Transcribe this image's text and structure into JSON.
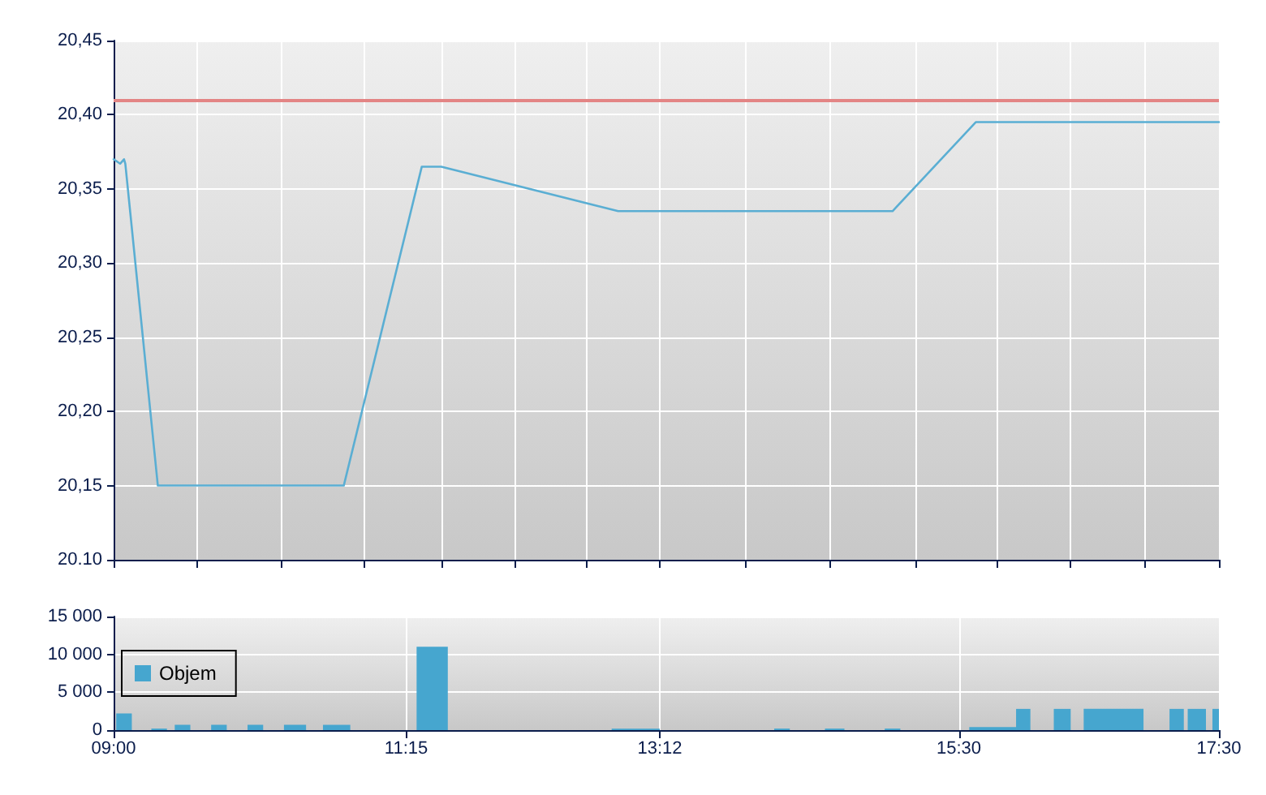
{
  "chart_data": [
    {
      "type": "line",
      "x": [
        9,
        9.05,
        9.08,
        9.09,
        9.34,
        10.77,
        11.37,
        11.52,
        12.88,
        14.99,
        15.63,
        17.5
      ],
      "values": [
        20.37,
        20.367,
        20.37,
        20.367,
        20.15,
        20.15,
        20.365,
        20.365,
        20.335,
        20.335,
        20.395,
        20.395
      ],
      "color": "#5aaed3",
      "xlim": [
        9,
        17.5
      ],
      "xticks": [
        {
          "value": 9,
          "label": null
        },
        {
          "value": 9.64,
          "label": null
        },
        {
          "value": 10.29,
          "label": null
        },
        {
          "value": 10.93,
          "label": null
        },
        {
          "value": 11.53,
          "label": null
        },
        {
          "value": 12.09,
          "label": null
        },
        {
          "value": 12.64,
          "label": null
        },
        {
          "value": 13.2,
          "label": null
        },
        {
          "value": 13.86,
          "label": null
        },
        {
          "value": 14.51,
          "label": null
        },
        {
          "value": 15.17,
          "label": null
        },
        {
          "value": 15.79,
          "label": null
        },
        {
          "value": 16.36,
          "label": null
        },
        {
          "value": 16.93,
          "label": null
        },
        {
          "value": 17.5,
          "label": null
        }
      ],
      "ylim": [
        20.1,
        20.45
      ],
      "yticks": [
        {
          "value": 20.1,
          "label": "20.10"
        },
        {
          "value": 20.15,
          "label": "20,15"
        },
        {
          "value": 20.2,
          "label": "20,20"
        },
        {
          "value": 20.25,
          "label": "20,25"
        },
        {
          "value": 20.3,
          "label": "20,30"
        },
        {
          "value": 20.35,
          "label": "20,35"
        },
        {
          "value": 20.4,
          "label": "20,40"
        },
        {
          "value": 20.45,
          "label": "20,45"
        }
      ],
      "ref_lines": [
        {
          "axis": "y",
          "value": 20.41,
          "color": "#e38585"
        }
      ],
      "grid": true,
      "tick_labels": "y"
    },
    {
      "type": "histogram",
      "bins": [
        9.02,
        9.14,
        9.29,
        9.41,
        9.47,
        9.59,
        9.75,
        9.87,
        10.03,
        10.15,
        10.31,
        10.48,
        10.61,
        10.82,
        11.33,
        11.57,
        12.83,
        13.2,
        14.08,
        14.2,
        14.47,
        14.62,
        14.93,
        15.05,
        15.58,
        15.94,
        16.05,
        16.23,
        16.36,
        16.46,
        16.92,
        17.12,
        17.23,
        17.26,
        17.4,
        17.45,
        17.5
      ],
      "series": [
        {
          "name": "Objem",
          "color": "#46a6cf",
          "values": [
            2200,
            null,
            200,
            null,
            700,
            null,
            700,
            null,
            700,
            null,
            700,
            null,
            700,
            null,
            11000,
            null,
            200,
            null,
            200,
            null,
            200,
            null,
            200,
            null,
            400,
            2800,
            null,
            2800,
            null,
            2800,
            null,
            2800,
            null,
            2800,
            null,
            2800
          ]
        }
      ],
      "xlim": [
        9,
        17.5
      ],
      "xticks": [
        {
          "value": 9,
          "label": "09:00"
        },
        {
          "value": 11.25,
          "label": "11:15"
        },
        {
          "value": 13.2,
          "label": "13:12"
        },
        {
          "value": 15.5,
          "label": "15:30"
        },
        {
          "value": 17.5,
          "label": "17:30"
        }
      ],
      "ylim": [
        0,
        15000
      ],
      "yticks": [
        0,
        {
          "value": 5000,
          "label": "5 000"
        },
        {
          "value": 10000,
          "label": "10 000"
        },
        {
          "value": 15000,
          "label": "15 000"
        }
      ],
      "grid": true,
      "legend": "left"
    }
  ]
}
